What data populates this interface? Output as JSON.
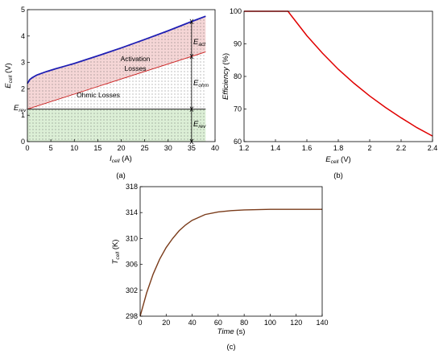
{
  "chart_data": [
    {
      "panel": "(a)",
      "type": "line",
      "ylabel_sym": "E",
      "ylabel_sub": "cell",
      "ylabel_unit": " (V)",
      "xlabel_sym": "I",
      "xlabel_sub": "cell",
      "xlabel_unit": " (A)",
      "xlim": [
        0,
        40
      ],
      "ylim": [
        0,
        5
      ],
      "xticks": [
        0,
        5,
        10,
        15,
        20,
        25,
        30,
        35,
        40
      ],
      "yticks": [
        0,
        1,
        2,
        3,
        4,
        5
      ],
      "series": [
        {
          "color": "#1f1fb4",
          "x": [
            0,
            0.5,
            1,
            2,
            4,
            6,
            8,
            10,
            15,
            20,
            25,
            30,
            35,
            38
          ],
          "y": [
            2.2,
            2.35,
            2.42,
            2.52,
            2.65,
            2.76,
            2.86,
            2.96,
            3.25,
            3.55,
            3.87,
            4.2,
            4.55,
            4.75
          ]
        },
        {
          "color": "#cc2222",
          "x": [
            0,
            38
          ],
          "y": [
            1.23,
            3.4
          ]
        },
        {
          "color": "#000000",
          "x": [
            0,
            38
          ],
          "y": [
            1.23,
            1.23
          ]
        }
      ],
      "regions": {
        "activation": {
          "label1": "Activation",
          "label2": "Losses",
          "color": "#f5d6d6"
        },
        "ohmic": {
          "label": "Ohmic Losses",
          "color": "#ffffff"
        },
        "reversible": {
          "color": "#dcefd6"
        }
      },
      "annotations": {
        "e_rev_left": {
          "sym": "E",
          "sub": "rev"
        },
        "e_act": {
          "sym": "E",
          "sub": "act"
        },
        "e_ohm": {
          "sym": "E",
          "sub": "ohm"
        },
        "e_rev": {
          "sym": "E",
          "sub": "rev"
        }
      },
      "marker_x": 35,
      "caption": "(a)"
    },
    {
      "panel": "(b)",
      "type": "line",
      "ylabel_sym": "Efficiency",
      "ylabel_unit": " (%)",
      "xlabel_sym": "E",
      "xlabel_sub": "cell",
      "xlabel_unit": " (V)",
      "xlim": [
        1.2,
        2.4
      ],
      "ylim": [
        60,
        100
      ],
      "xticks": [
        "1.2",
        "1.4",
        "1.6",
        "1.8",
        "2",
        "2.2",
        "2.4"
      ],
      "yticks": [
        60,
        70,
        80,
        90,
        100
      ],
      "series": [
        {
          "color": "#e00000",
          "x": [
            1.2,
            1.48,
            1.5,
            1.6,
            1.7,
            1.8,
            1.9,
            2.0,
            2.1,
            2.2,
            2.3,
            2.4
          ],
          "y": [
            100,
            100,
            98.7,
            92.5,
            87.1,
            82.2,
            77.9,
            74.0,
            70.5,
            67.3,
            64.3,
            61.7
          ]
        }
      ],
      "caption": "(b)"
    },
    {
      "panel": "(c)",
      "type": "line",
      "ylabel_sym": "T",
      "ylabel_sub": "cell",
      "ylabel_unit": " (K)",
      "xlabel_sym": "Time",
      "xlabel_unit": " (s)",
      "xlim": [
        0,
        140
      ],
      "ylim": [
        298,
        318
      ],
      "xticks": [
        0,
        20,
        40,
        60,
        80,
        100,
        120,
        140
      ],
      "yticks": [
        298,
        302,
        306,
        310,
        314,
        318
      ],
      "series": [
        {
          "color": "#7a3b1a",
          "x": [
            0,
            5,
            10,
            15,
            20,
            25,
            30,
            35,
            40,
            50,
            60,
            70,
            80,
            90,
            100,
            120,
            140
          ],
          "y": [
            298,
            301.6,
            304.5,
            306.8,
            308.6,
            310.0,
            311.2,
            312.1,
            312.8,
            313.7,
            314.1,
            314.3,
            314.4,
            314.45,
            314.5,
            314.5,
            314.5
          ]
        }
      ],
      "caption": "(c)"
    }
  ]
}
